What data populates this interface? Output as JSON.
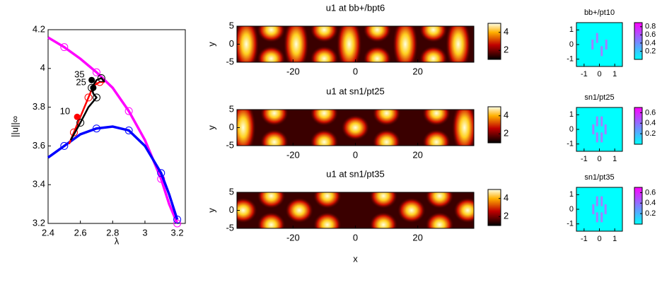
{
  "chart_data": [
    {
      "type": "line",
      "xlabel": "λ",
      "ylabel": "||u||∞",
      "xlim": [
        2.4,
        3.25
      ],
      "ylim": [
        3.2,
        4.2
      ],
      "xticks": [
        2.4,
        2.6,
        2.8,
        3,
        3.2
      ],
      "yticks": [
        3.2,
        3.4,
        3.6,
        3.8,
        4,
        4.2
      ],
      "series": [
        {
          "color": "#ff00ff",
          "x": [
            2.4,
            2.5,
            2.6,
            2.7,
            2.8,
            2.9,
            3.0,
            3.1,
            3.15,
            3.2
          ],
          "values": [
            4.16,
            4.11,
            4.05,
            3.98,
            3.9,
            3.78,
            3.63,
            3.43,
            3.3,
            3.2
          ]
        },
        {
          "color": "#0000ff",
          "x": [
            2.4,
            2.5,
            2.6,
            2.7,
            2.8,
            2.9,
            3.0,
            3.1,
            3.15,
            3.2
          ],
          "values": [
            3.54,
            3.6,
            3.66,
            3.69,
            3.7,
            3.68,
            3.6,
            3.46,
            3.35,
            3.22
          ]
        },
        {
          "color": "#ff0000",
          "x": [
            2.53,
            2.56,
            2.6,
            2.65,
            2.68,
            2.72,
            2.75
          ],
          "values": [
            3.61,
            3.67,
            3.75,
            3.85,
            3.91,
            3.93,
            3.93
          ]
        },
        {
          "color": "#000000",
          "x": [
            2.54,
            2.6,
            2.65,
            2.7,
            2.68,
            2.67,
            2.7,
            2.73,
            2.75
          ],
          "values": [
            3.63,
            3.72,
            3.8,
            3.85,
            3.87,
            3.9,
            3.94,
            3.95,
            3.93
          ]
        }
      ],
      "annotations": [
        {
          "text": "35",
          "x": 2.67,
          "y": 3.94,
          "color": "#000000"
        },
        {
          "text": "25",
          "x": 2.68,
          "y": 3.9,
          "color": "#000000"
        },
        {
          "text": "10",
          "x": 2.58,
          "y": 3.75,
          "color": "#ff0000"
        }
      ]
    },
    {
      "type": "heatmap",
      "title": "u1 at bb+/bpt6",
      "ylabel": "y",
      "xlim": [
        -38,
        38
      ],
      "ylim": [
        -5,
        5
      ],
      "xticks": [
        -20,
        0,
        20
      ],
      "yticks": [
        -5,
        0,
        5
      ],
      "clim": [
        1,
        5
      ],
      "cticks": [
        2,
        4
      ],
      "stripes": [
        -35,
        -19,
        -2,
        16,
        33
      ],
      "spots": [
        {
          "x": -27,
          "y": 4
        },
        {
          "x": -27,
          "y": -4
        },
        {
          "x": -10,
          "y": 4
        },
        {
          "x": -10,
          "y": -4
        },
        {
          "x": 7,
          "y": 4
        },
        {
          "x": 7,
          "y": -4
        },
        {
          "x": 25,
          "y": 4
        },
        {
          "x": 25,
          "y": -4
        }
      ]
    },
    {
      "type": "heatmap",
      "title": "u1 at sn1/pt25",
      "ylabel": "y",
      "xlim": [
        -38,
        38
      ],
      "ylim": [
        -5,
        5
      ],
      "xticks": [
        -20,
        0,
        20
      ],
      "yticks": [
        -5,
        0,
        5
      ],
      "clim": [
        1,
        5
      ],
      "cticks": [
        2,
        4
      ],
      "stripes": [
        -36,
        35
      ],
      "spots": [
        {
          "x": -26,
          "y": 4
        },
        {
          "x": -26,
          "y": -4
        },
        {
          "x": -10,
          "y": 4
        },
        {
          "x": -10,
          "y": -4
        },
        {
          "x": 0,
          "y": 0
        },
        {
          "x": 10,
          "y": 4
        },
        {
          "x": 10,
          "y": -4
        },
        {
          "x": 26,
          "y": 4
        },
        {
          "x": 26,
          "y": -4
        }
      ]
    },
    {
      "type": "heatmap",
      "title": "u1 at sn1/pt35",
      "xlabel": "x",
      "ylabel": "y",
      "xlim": [
        -38,
        38
      ],
      "ylim": [
        -5,
        5
      ],
      "xticks": [
        -20,
        0,
        20
      ],
      "yticks": [
        -5,
        0,
        5
      ],
      "clim": [
        1,
        5
      ],
      "cticks": [
        2,
        4
      ],
      "stripes": [],
      "spots": [
        {
          "x": -36,
          "y": 0
        },
        {
          "x": -27,
          "y": 4
        },
        {
          "x": -27,
          "y": -4
        },
        {
          "x": -18,
          "y": 0
        },
        {
          "x": -9,
          "y": 4
        },
        {
          "x": -9,
          "y": -4
        },
        {
          "x": 9,
          "y": 4
        },
        {
          "x": 9,
          "y": -4
        },
        {
          "x": 18,
          "y": 0
        },
        {
          "x": 27,
          "y": 4
        },
        {
          "x": 27,
          "y": -4
        },
        {
          "x": 36,
          "y": 0
        }
      ]
    },
    {
      "type": "map",
      "title": "bb+/pt10",
      "xlim": [
        -1.5,
        1.5
      ],
      "ylim": [
        -1.5,
        1.5
      ],
      "xticks": [
        -1,
        0,
        1
      ],
      "yticks": [
        -1,
        0,
        1
      ],
      "clim": [
        0,
        0.9
      ],
      "cticks": [
        0.2,
        0.4,
        0.6,
        0.8
      ],
      "bars": [
        {
          "x": -0.45,
          "y": 0
        },
        {
          "x": -0.15,
          "y": 0.45
        },
        {
          "x": 0.15,
          "y": -0.45
        },
        {
          "x": 0.45,
          "y": 0
        }
      ]
    },
    {
      "type": "map",
      "title": "sn1/pt25",
      "xlim": [
        -1.5,
        1.5
      ],
      "ylim": [
        -1.5,
        1.5
      ],
      "xticks": [
        -1,
        0,
        1
      ],
      "yticks": [
        -1,
        0,
        1
      ],
      "clim": [
        0,
        0.7
      ],
      "cticks": [
        0.2,
        0.4,
        0.6
      ],
      "bars": [
        {
          "x": -0.4,
          "y": 0
        },
        {
          "x": -0.15,
          "y": 0.55
        },
        {
          "x": 0.15,
          "y": 0.55
        },
        {
          "x": -0.15,
          "y": -0.55
        },
        {
          "x": 0.15,
          "y": -0.55
        },
        {
          "x": 0.4,
          "y": 0
        }
      ]
    },
    {
      "type": "map",
      "title": "sn1/pt35",
      "xlim": [
        -1.5,
        1.5
      ],
      "ylim": [
        -1.5,
        1.5
      ],
      "xticks": [
        -1,
        0,
        1
      ],
      "yticks": [
        -1,
        0,
        1
      ],
      "clim": [
        0,
        0.7
      ],
      "cticks": [
        0.2,
        0.4,
        0.6
      ],
      "bars": [
        {
          "x": -0.4,
          "y": 0
        },
        {
          "x": -0.15,
          "y": 0.55
        },
        {
          "x": 0.15,
          "y": 0.55
        },
        {
          "x": -0.15,
          "y": -0.55
        },
        {
          "x": 0.15,
          "y": -0.55
        },
        {
          "x": 0.4,
          "y": 0
        }
      ]
    }
  ]
}
